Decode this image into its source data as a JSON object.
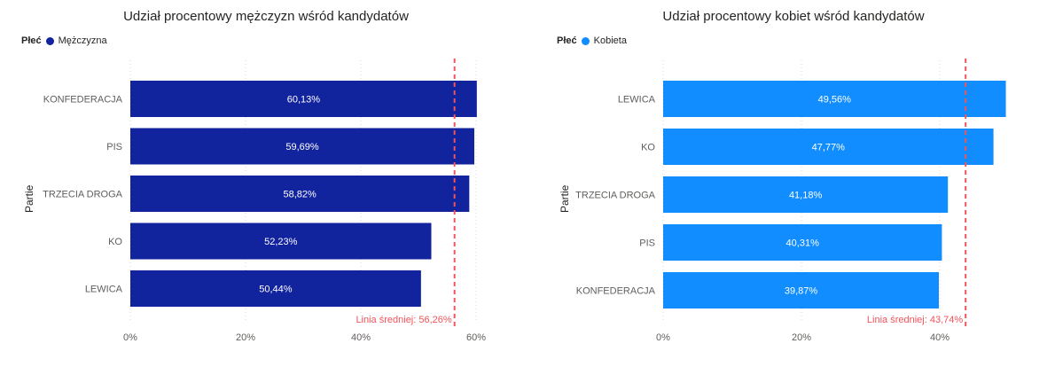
{
  "chart_data": [
    {
      "type": "bar",
      "orientation": "horizontal",
      "title": "Udział procentowy mężczyzn wśród kandydatów",
      "legend": {
        "title": "Płeć",
        "items": [
          {
            "name": "Mężczyzna",
            "color": "#12239E"
          }
        ],
        "placement": "top-left"
      },
      "ylabel": "Partie",
      "xlabel": "",
      "categories": [
        "KONFEDERACJA",
        "PIS",
        "TRZECIA DROGA",
        "KO",
        "LEWICA"
      ],
      "values": [
        60.13,
        59.69,
        58.82,
        52.23,
        50.44
      ],
      "value_labels": [
        "60,13%",
        "59,69%",
        "58,82%",
        "52,23%",
        "50,44%"
      ],
      "series": [
        {
          "name": "Mężczyzna",
          "values": [
            60.13,
            59.69,
            58.82,
            52.23,
            50.44
          ]
        }
      ],
      "bar_color": "#12239E",
      "xlim": [
        0,
        60
      ],
      "xticks": [
        0,
        20,
        40,
        60
      ],
      "xtick_labels": [
        "0%",
        "20%",
        "40%",
        "60%"
      ],
      "grid": "vertical dotted",
      "average_line": {
        "value": 56.26,
        "label": "Linia średniej: 56,26%",
        "color": "#F2545B"
      }
    },
    {
      "type": "bar",
      "orientation": "horizontal",
      "title": "Udział procentowy kobiet wśród kandydatów",
      "legend": {
        "title": "Płeć",
        "items": [
          {
            "name": "Kobieta",
            "color": "#118DFF"
          }
        ],
        "placement": "top-left"
      },
      "ylabel": "Partie",
      "xlabel": "",
      "categories": [
        "LEWICA",
        "KO",
        "TRZECIA DROGA",
        "PIS",
        "KONFEDERACJA"
      ],
      "values": [
        49.56,
        47.77,
        41.18,
        40.31,
        39.87
      ],
      "value_labels": [
        "49,56%",
        "47,77%",
        "41,18%",
        "40,31%",
        "39,87%"
      ],
      "series": [
        {
          "name": "Kobieta",
          "values": [
            49.56,
            47.77,
            41.18,
            40.31,
            39.87
          ]
        }
      ],
      "bar_color": "#118DFF",
      "xlim": [
        0,
        40
      ],
      "xticks": [
        0,
        20,
        40
      ],
      "xtick_labels": [
        "0%",
        "20%",
        "40%"
      ],
      "grid": "vertical dotted",
      "average_line": {
        "value": 43.74,
        "label": "Linia średniej: 43,74%",
        "color": "#F2545B"
      }
    }
  ]
}
